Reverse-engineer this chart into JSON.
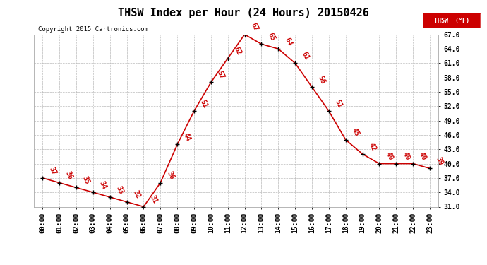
{
  "title": "THSW Index per Hour (24 Hours) 20150426",
  "copyright": "Copyright 2015 Cartronics.com",
  "legend_label": "THSW  (°F)",
  "hours": [
    0,
    1,
    2,
    3,
    4,
    5,
    6,
    7,
    8,
    9,
    10,
    11,
    12,
    13,
    14,
    15,
    16,
    17,
    18,
    19,
    20,
    21,
    22,
    23
  ],
  "values": [
    37,
    36,
    35,
    34,
    33,
    32,
    31,
    36,
    44,
    51,
    57,
    62,
    67,
    65,
    64,
    61,
    56,
    51,
    45,
    42,
    40,
    40,
    40,
    39
  ],
  "ylim_min": 31.0,
  "ylim_max": 67.0,
  "yticks": [
    31.0,
    34.0,
    37.0,
    40.0,
    43.0,
    46.0,
    49.0,
    52.0,
    55.0,
    58.0,
    61.0,
    64.0,
    67.0
  ],
  "line_color": "#cc0000",
  "marker_color": "#000000",
  "bg_color": "#ffffff",
  "grid_color": "#bbbbbb",
  "label_color": "#cc0000",
  "title_fontsize": 11,
  "tick_label_fontsize": 7,
  "data_label_fontsize": 7,
  "copyright_fontsize": 6.5
}
